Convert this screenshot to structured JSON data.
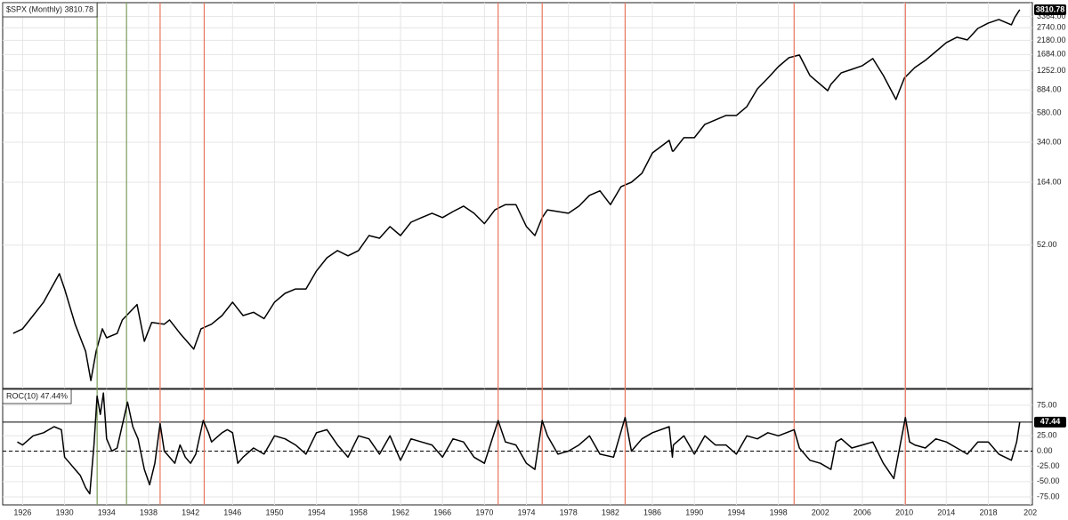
{
  "chart_data": [
    {
      "type": "line",
      "title": "$SPX (Monthly) 3810.78",
      "log_scale": true,
      "color": "#000000",
      "xlim": [
        1924.1,
        2022.2
      ],
      "ylim": [
        3.81,
        4335
      ],
      "yticks": [
        {
          "value": 3364,
          "label": "3364.00"
        },
        {
          "value": 2740,
          "label": "2740.00"
        },
        {
          "value": 2180,
          "label": "2180.00"
        },
        {
          "value": 1684,
          "label": "1684.00"
        },
        {
          "value": 1252,
          "label": "1252.00"
        },
        {
          "value": 884,
          "label": "884.00"
        },
        {
          "value": 580,
          "label": "580.00"
        },
        {
          "value": 340,
          "label": "340.00"
        },
        {
          "value": 164,
          "label": "164.00"
        },
        {
          "value": 52,
          "label": "52.00"
        }
      ],
      "last_value": 3810.78,
      "vlines": [
        {
          "x": 1933.1,
          "color": "#7a9e5a"
        },
        {
          "x": 1935.9,
          "color": "#7a9e5a"
        },
        {
          "x": 1939.1,
          "color": "#e8765e"
        },
        {
          "x": 1943.3,
          "color": "#e8765e"
        },
        {
          "x": 1971.3,
          "color": "#e8765e"
        },
        {
          "x": 1975.5,
          "color": "#e8765e"
        },
        {
          "x": 1983.4,
          "color": "#e8765e"
        },
        {
          "x": 1999.5,
          "color": "#e8765e"
        },
        {
          "x": 2010.1,
          "color": "#e8765e"
        }
      ],
      "x": [
        1925.1,
        1926,
        1927,
        1928,
        1929.5,
        1930,
        1931,
        1932,
        1932.5,
        1933,
        1933.6,
        1934,
        1935,
        1935.5,
        1936.9,
        1937.6,
        1938.3,
        1939.5,
        1940,
        1941,
        1942.3,
        1943,
        1944,
        1945,
        1946,
        1947,
        1948,
        1949,
        1950,
        1951,
        1952,
        1953,
        1954,
        1955,
        1956,
        1957,
        1958,
        1959,
        1960,
        1961,
        1962,
        1963,
        1964,
        1965,
        1966,
        1967,
        1968,
        1969,
        1970,
        1971,
        1972,
        1973,
        1974,
        1974.8,
        1975.5,
        1976,
        1977,
        1978,
        1979,
        1980,
        1981,
        1982,
        1983,
        1984,
        1985,
        1986,
        1987.6,
        1987.9,
        1988,
        1989,
        1990,
        1991,
        1992,
        1993,
        1994,
        1995,
        1996,
        1997,
        1998,
        1999,
        2000,
        2001,
        2002.7,
        2003,
        2004,
        2005,
        2006,
        2007,
        2008,
        2009.2,
        2010,
        2011,
        2012,
        2013,
        2014,
        2015,
        2016,
        2017,
        2018,
        2019,
        2020.2,
        2020.5,
        2021
      ],
      "values": [
        10.4,
        11.3,
        14.4,
        18.4,
        30.9,
        23.4,
        12.3,
        7.5,
        4.4,
        7.5,
        11.3,
        9.6,
        10.4,
        13.3,
        17.6,
        9.0,
        12.7,
        12.3,
        13.3,
        10.4,
        7.8,
        11.3,
        12.3,
        14.4,
        18.4,
        14.4,
        15.3,
        13.6,
        18.4,
        21.6,
        23.4,
        23.4,
        32.5,
        41.3,
        47.1,
        42.8,
        47.1,
        62,
        59,
        73,
        62,
        79,
        86,
        93,
        86,
        96,
        106,
        93,
        77,
        99,
        109,
        109,
        73,
        62,
        86,
        99,
        96,
        93,
        106,
        129,
        140,
        109,
        151,
        164,
        193,
        280,
        352,
        289,
        289,
        369,
        369,
        471,
        511,
        554,
        554,
        651,
        900,
        1094,
        1350,
        1588,
        1668,
        1148,
        871,
        977,
        1206,
        1285,
        1374,
        1563,
        1148,
        741,
        1094,
        1328,
        1514,
        1778,
        2094,
        2307,
        2198,
        2710,
        2992,
        3192,
        2897,
        3296,
        3810.78
      ]
    },
    {
      "type": "line",
      "title": "ROC(10) 47.44%",
      "color": "#000000",
      "xlim": [
        1924.1,
        2022.2
      ],
      "ylim": [
        -88,
        101
      ],
      "yticks": [
        {
          "value": 75,
          "label": "75.00"
        },
        {
          "value": 25,
          "label": "25.00"
        },
        {
          "value": 0,
          "label": "0.00"
        },
        {
          "value": -25,
          "label": "-25.00"
        },
        {
          "value": -50,
          "label": "-50.00"
        },
        {
          "value": -75,
          "label": "-75.00"
        }
      ],
      "xticks": [
        1926,
        1930,
        1934,
        1938,
        1942,
        1946,
        1950,
        1954,
        1958,
        1962,
        1966,
        1970,
        1974,
        1978,
        1982,
        1986,
        1990,
        1994,
        1998,
        2002,
        2006,
        2010,
        2014,
        2018,
        {
          "value": 2022,
          "label": "202"
        }
      ],
      "last_value": 47.44,
      "reference_line": 0,
      "x": [
        1925.5,
        1926,
        1927,
        1928,
        1929,
        1929.7,
        1930,
        1930.5,
        1931,
        1931.5,
        1932,
        1932.4,
        1932.8,
        1933.1,
        1933.4,
        1933.7,
        1934,
        1934.5,
        1935,
        1935.6,
        1936,
        1936.5,
        1937,
        1937.6,
        1938.1,
        1938.6,
        1939.1,
        1939.5,
        1940,
        1940.5,
        1941,
        1941.5,
        1942,
        1942.5,
        1943.2,
        1943.7,
        1944,
        1945,
        1945.5,
        1946,
        1946.5,
        1947,
        1948,
        1949,
        1950,
        1951,
        1952,
        1953,
        1954,
        1955,
        1956,
        1957,
        1958,
        1959,
        1960,
        1961,
        1962,
        1963,
        1964,
        1965,
        1966,
        1967,
        1968,
        1969,
        1970,
        1971.3,
        1972,
        1973,
        1974,
        1974.8,
        1975.5,
        1976,
        1977,
        1978,
        1979,
        1980,
        1981,
        1982.3,
        1983.4,
        1984,
        1985,
        1986,
        1987.6,
        1987.9,
        1988,
        1989,
        1990,
        1991,
        1992,
        1993,
        1994,
        1995,
        1996,
        1997,
        1998,
        1999.5,
        2000,
        2001,
        2002,
        2003,
        2003.5,
        2004,
        2005,
        2006,
        2007,
        2008,
        2009,
        2010.1,
        2010.5,
        2011,
        2012,
        2013,
        2014,
        2015,
        2016,
        2017,
        2018,
        2019,
        2020.2,
        2020.7,
        2021
      ],
      "values": [
        15,
        10,
        25,
        30,
        40,
        35,
        -10,
        -20,
        -30,
        -40,
        -60,
        -70,
        10,
        90,
        60,
        95,
        20,
        0,
        5,
        50,
        80,
        40,
        20,
        -30,
        -55,
        -20,
        45,
        0,
        -10,
        -20,
        10,
        -10,
        -20,
        -5,
        50,
        30,
        15,
        30,
        35,
        30,
        -20,
        -10,
        5,
        -5,
        25,
        20,
        10,
        -5,
        30,
        35,
        10,
        -10,
        25,
        20,
        -5,
        25,
        -15,
        20,
        15,
        10,
        -10,
        20,
        15,
        -10,
        -20,
        50,
        15,
        10,
        -20,
        -30,
        50,
        25,
        -5,
        0,
        10,
        25,
        -5,
        -10,
        55,
        0,
        20,
        30,
        40,
        -10,
        10,
        25,
        -5,
        25,
        10,
        10,
        -5,
        25,
        20,
        30,
        25,
        35,
        5,
        -15,
        -20,
        -30,
        15,
        20,
        5,
        10,
        15,
        -20,
        -45,
        55,
        15,
        10,
        5,
        20,
        15,
        5,
        -5,
        15,
        15,
        -5,
        -15,
        15,
        47.44
      ]
    }
  ]
}
